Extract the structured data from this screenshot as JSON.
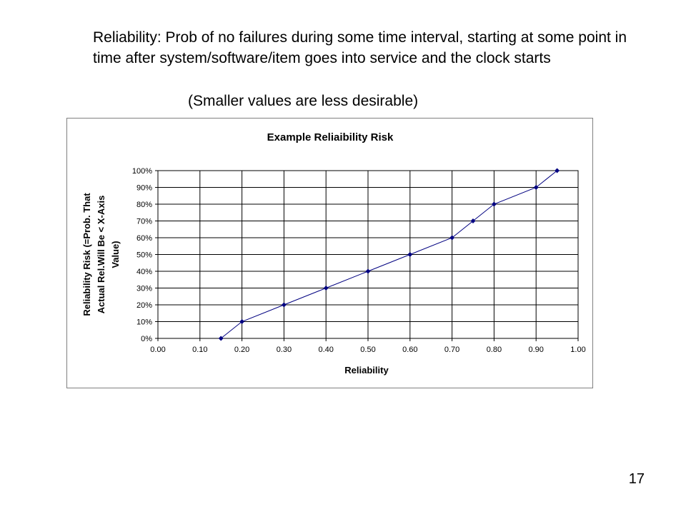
{
  "slide": {
    "body_text": "Reliability: Prob of no failures during some time interval, starting at some point in time after system/software/item goes into service and the clock starts",
    "note": "(Smaller values are less desirable)",
    "page_number": "17"
  },
  "chart_data": {
    "type": "line",
    "title": "Example Reliaibility Risk",
    "xlabel": "Reliability",
    "ylabel_lines": [
      "Reliability Risk (=Prob. That",
      "Actual Rel.Will Be < X-Axis",
      "Value)"
    ],
    "xlim": [
      0,
      1
    ],
    "ylim": [
      0,
      1
    ],
    "x_ticks": [
      "0.00",
      "0.10",
      "0.20",
      "0.30",
      "0.40",
      "0.50",
      "0.60",
      "0.70",
      "0.80",
      "0.90",
      "1.00"
    ],
    "y_ticks": [
      "0%",
      "10%",
      "20%",
      "30%",
      "40%",
      "50%",
      "60%",
      "70%",
      "80%",
      "90%",
      "100%"
    ],
    "grid": true,
    "legend": "none",
    "series": [
      {
        "color": "#000080",
        "x": [
          0.15,
          0.2,
          0.3,
          0.4,
          0.5,
          0.6,
          0.7,
          0.75,
          0.8,
          0.9,
          0.95
        ],
        "y": [
          0.0,
          0.1,
          0.2,
          0.3,
          0.4,
          0.5,
          0.6,
          0.7,
          0.8,
          0.9,
          1.0
        ]
      }
    ]
  }
}
